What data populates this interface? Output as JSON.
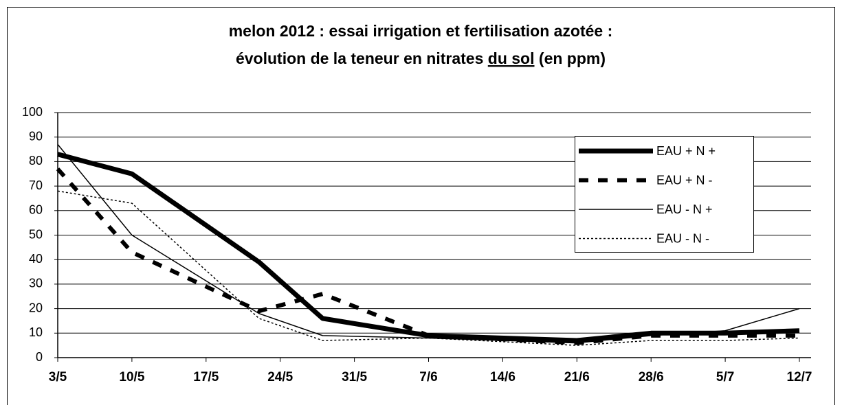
{
  "chart_data": {
    "type": "line",
    "title": {
      "line1": "melon 2012 : essai irrigation et fertilisation azotée :",
      "line2_start": "évolution de la teneur en nitrates",
      "line2_underlined": "du sol",
      "line2_end": "(en ppm)"
    },
    "x": [
      "3/5",
      "10/5",
      "22/5",
      "28/5",
      "7/6",
      "21/6",
      "28/6",
      "5/7",
      "12/7"
    ],
    "series": [
      {
        "name": "EAU + N +",
        "color": "#000000",
        "style": "thick",
        "values": [
          83,
          75,
          39,
          16,
          9,
          7,
          10,
          10,
          11
        ]
      },
      {
        "name": "EAU + N -",
        "color": "#000000",
        "style": "dashed",
        "values": [
          77,
          43,
          19,
          26,
          9,
          6,
          9,
          9,
          9
        ]
      },
      {
        "name": "EAU - N +",
        "color": "#000000",
        "style": "thin",
        "values": [
          87,
          50,
          18,
          9,
          8,
          6,
          9,
          11,
          20
        ]
      },
      {
        "name": "EAU - N -",
        "color": "#000000",
        "style": "dotted",
        "values": [
          68,
          63,
          16,
          7,
          8,
          5,
          7,
          7,
          8
        ]
      }
    ],
    "xlim": [
      "3/5",
      "12/7"
    ],
    "xticks": [
      "3/5",
      "10/5",
      "17/5",
      "24/5",
      "31/5",
      "7/6",
      "14/6",
      "21/6",
      "28/6",
      "5/7",
      "12/7"
    ],
    "ylim": [
      0,
      100
    ],
    "yticks": [
      0,
      10,
      20,
      30,
      40,
      50,
      60,
      70,
      80,
      90,
      100
    ],
    "grid": true,
    "legend": "right"
  }
}
